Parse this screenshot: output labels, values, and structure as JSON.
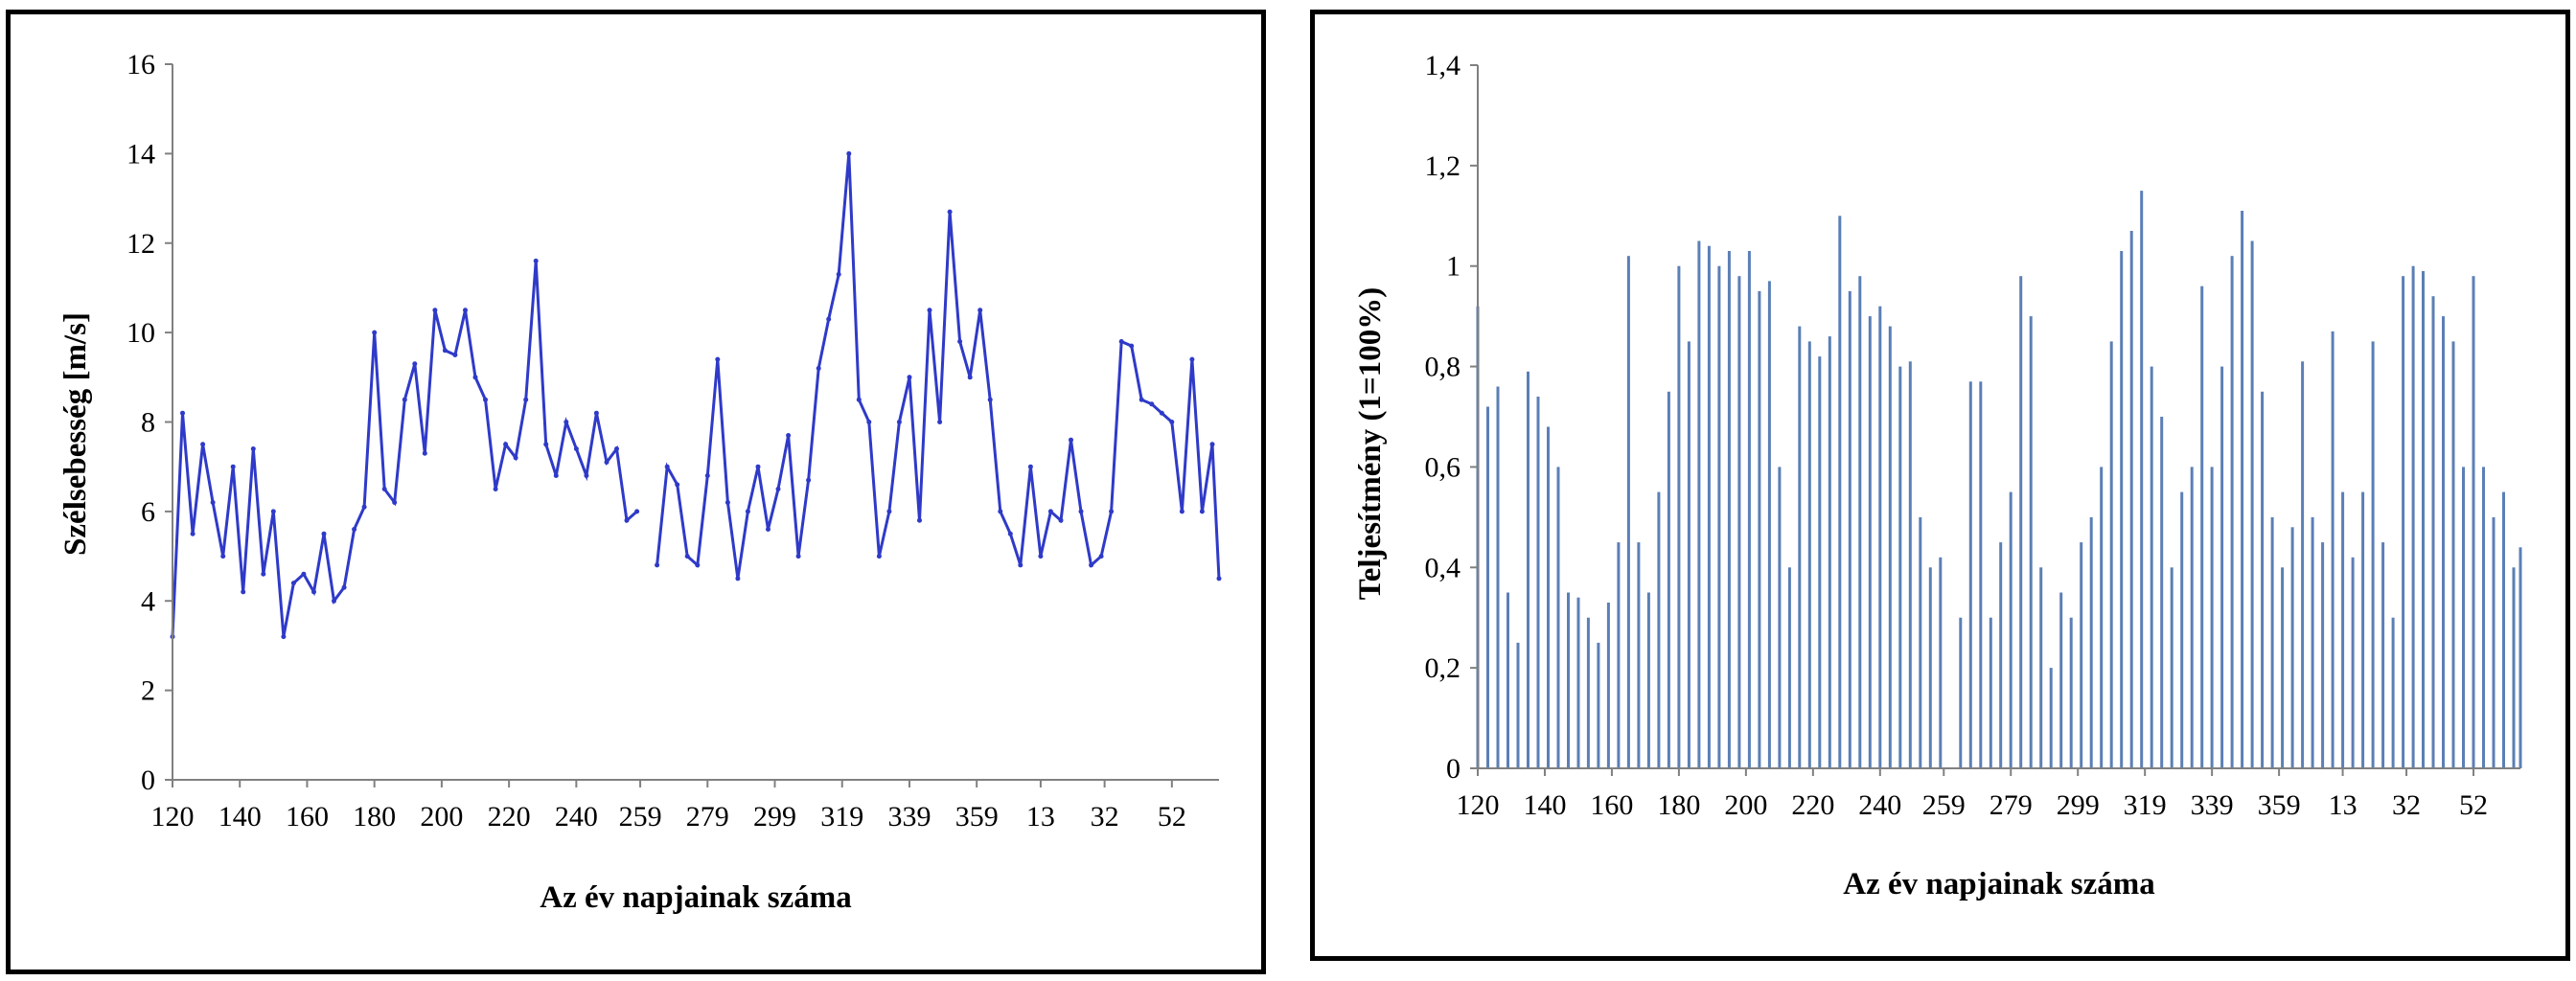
{
  "chart_data": [
    {
      "type": "line",
      "title": "",
      "xlabel": "Az év napjainak száma",
      "ylabel": "Szélsebesség [m/s]",
      "ylim": [
        0,
        16
      ],
      "y_ticks": [
        "0",
        "2",
        "4",
        "6",
        "8",
        "10",
        "12",
        "14",
        "16"
      ],
      "x_ticks": [
        "120",
        "140",
        "160",
        "180",
        "200",
        "220",
        "240",
        "259",
        "279",
        "299",
        "319",
        "339",
        "359",
        "13",
        "32",
        "52"
      ],
      "x_tick_days": [
        120,
        140,
        160,
        180,
        200,
        220,
        240,
        259,
        279,
        299,
        319,
        339,
        359,
        378,
        397,
        417
      ],
      "xlim": [
        120,
        431
      ],
      "grid": false,
      "legend": "none",
      "color": "#2f3ac8",
      "series": [
        {
          "x": [
            120,
            123,
            126,
            129,
            132,
            135,
            138,
            141,
            144,
            147,
            150,
            153,
            156,
            159,
            162,
            165,
            168,
            171,
            174,
            177,
            180,
            183,
            186,
            189,
            192,
            195,
            198,
            201,
            204,
            207,
            210,
            213,
            216,
            219,
            222,
            225,
            228,
            231,
            234,
            237,
            240,
            243,
            246,
            249,
            252,
            255,
            258,
            264,
            267,
            270,
            273,
            276,
            279,
            282,
            285,
            288,
            291,
            294,
            297,
            300,
            303,
            306,
            309,
            312,
            315,
            318,
            321,
            324,
            327,
            330,
            333,
            336,
            339,
            342,
            345,
            348,
            351,
            354,
            357,
            360,
            363,
            366,
            369,
            372,
            375,
            378,
            381,
            384,
            387,
            390,
            393,
            396,
            399,
            402,
            405,
            408,
            411,
            414,
            417,
            420,
            423,
            426,
            429,
            431
          ],
          "y": [
            3.2,
            8.2,
            5.5,
            7.5,
            6.2,
            5.0,
            7.0,
            4.2,
            7.4,
            4.6,
            6.0,
            3.2,
            4.4,
            4.6,
            4.2,
            5.5,
            4.0,
            4.3,
            5.6,
            6.1,
            10.0,
            6.5,
            6.2,
            8.5,
            9.3,
            7.3,
            10.5,
            9.6,
            9.5,
            10.5,
            9.0,
            8.5,
            6.5,
            7.5,
            7.2,
            8.5,
            11.6,
            7.5,
            6.8,
            8.0,
            7.4,
            6.8,
            8.2,
            7.1,
            7.4,
            5.8,
            6.0,
            4.8,
            7.0,
            6.6,
            5.0,
            4.8,
            6.8,
            9.4,
            6.2,
            4.5,
            6.0,
            7.0,
            5.6,
            6.5,
            7.7,
            5.0,
            6.7,
            9.2,
            10.3,
            11.3,
            14.0,
            8.5,
            8.0,
            5.0,
            6.0,
            8.0,
            9.0,
            5.8,
            10.5,
            8.0,
            12.7,
            9.8,
            9.0,
            10.5,
            8.5,
            6.0,
            5.5,
            4.8,
            7.0,
            5.0,
            6.0,
            5.8,
            7.6,
            6.0,
            4.8,
            5.0,
            6.0,
            9.8,
            9.7,
            8.5,
            8.4,
            8.2,
            8.0,
            6.0,
            9.4,
            6.0,
            7.5,
            4.5
          ]
        }
      ]
    },
    {
      "type": "bar",
      "title": "",
      "xlabel": "Az év napjainak száma",
      "ylabel": "Teljesítmény  (1=100%)",
      "ylim": [
        0,
        1.4
      ],
      "y_ticks": [
        "0",
        "0,2",
        "0,4",
        "0,6",
        "0,8",
        "1",
        "1,2",
        "1,4"
      ],
      "x_ticks": [
        "120",
        "140",
        "160",
        "180",
        "200",
        "220",
        "240",
        "259",
        "279",
        "299",
        "319",
        "339",
        "359",
        "13",
        "32",
        "52"
      ],
      "x_tick_days": [
        120,
        140,
        160,
        180,
        200,
        220,
        240,
        259,
        279,
        299,
        319,
        339,
        359,
        378,
        397,
        417
      ],
      "xlim": [
        120,
        431
      ],
      "grid": false,
      "legend": "none",
      "color": "#5b7fb6",
      "series": [
        {
          "x": [
            120,
            123,
            126,
            129,
            132,
            135,
            138,
            141,
            144,
            147,
            150,
            153,
            156,
            159,
            162,
            165,
            168,
            171,
            174,
            177,
            180,
            183,
            186,
            189,
            192,
            195,
            198,
            201,
            204,
            207,
            210,
            213,
            216,
            219,
            222,
            225,
            228,
            231,
            234,
            237,
            240,
            243,
            246,
            249,
            252,
            255,
            258,
            264,
            267,
            270,
            273,
            276,
            279,
            282,
            285,
            288,
            291,
            294,
            297,
            300,
            303,
            306,
            309,
            312,
            315,
            318,
            321,
            324,
            327,
            330,
            333,
            336,
            339,
            342,
            345,
            348,
            351,
            354,
            357,
            360,
            363,
            366,
            369,
            372,
            375,
            378,
            381,
            384,
            387,
            390,
            393,
            396,
            399,
            402,
            405,
            408,
            411,
            414,
            417,
            420,
            423,
            426,
            429,
            431
          ],
          "y": [
            0.92,
            0.72,
            0.76,
            0.35,
            0.25,
            0.79,
            0.74,
            0.68,
            0.6,
            0.35,
            0.34,
            0.3,
            0.25,
            0.33,
            0.45,
            1.02,
            0.45,
            0.35,
            0.55,
            0.75,
            1.0,
            0.85,
            1.05,
            1.04,
            1.0,
            1.03,
            0.98,
            1.03,
            0.95,
            0.97,
            0.6,
            0.4,
            0.88,
            0.85,
            0.82,
            0.86,
            1.1,
            0.95,
            0.98,
            0.9,
            0.92,
            0.88,
            0.8,
            0.81,
            0.5,
            0.4,
            0.42,
            0.3,
            0.77,
            0.77,
            0.3,
            0.45,
            0.55,
            0.98,
            0.9,
            0.4,
            0.2,
            0.35,
            0.3,
            0.45,
            0.5,
            0.6,
            0.85,
            1.03,
            1.07,
            1.15,
            0.8,
            0.7,
            0.4,
            0.55,
            0.6,
            0.96,
            0.6,
            0.8,
            1.02,
            1.11,
            1.05,
            0.75,
            0.5,
            0.4,
            0.48,
            0.81,
            0.5,
            0.45,
            0.87,
            0.55,
            0.42,
            0.55,
            0.85,
            0.45,
            0.3,
            0.98,
            1.0,
            0.99,
            0.94,
            0.9,
            0.85,
            0.6,
            0.98,
            0.6,
            0.5,
            0.55,
            0.4,
            0.44
          ]
        }
      ]
    }
  ]
}
